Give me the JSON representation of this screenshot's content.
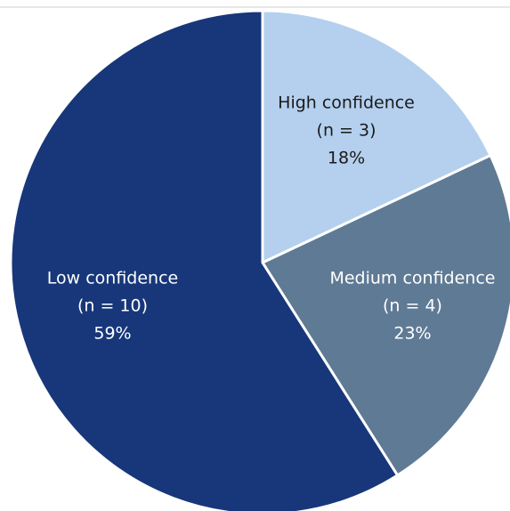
{
  "chart_data": {
    "type": "pie",
    "categories": [
      "High confidence",
      "Medium confidence",
      "Low confidence"
    ],
    "sublabels": [
      "(n = 3)",
      "(n = 4)",
      "(n = 10)"
    ],
    "values": [
      18,
      23,
      59
    ],
    "value_labels": [
      "18%",
      "23%",
      "59%"
    ],
    "colors": [
      "#b4d0ee",
      "#5f7a94",
      "#17377a"
    ],
    "label_colors": [
      "#1a1a1a",
      "#ffffff",
      "#ffffff"
    ]
  }
}
